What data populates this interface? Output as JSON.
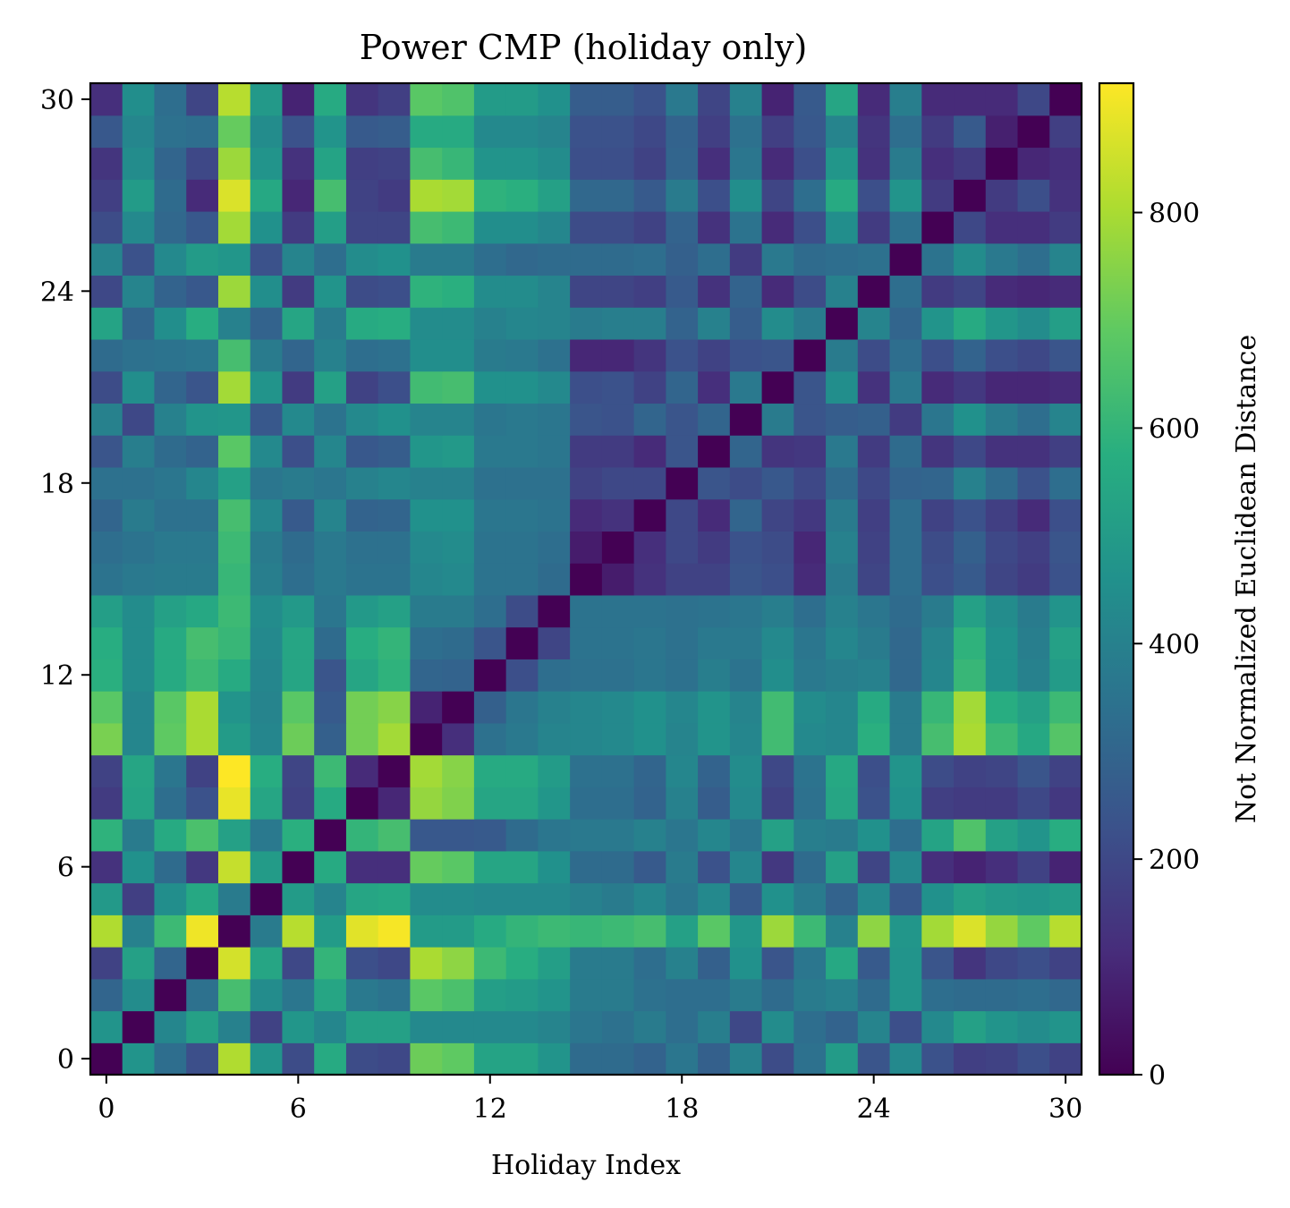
{
  "chart_data": {
    "type": "heatmap",
    "title": "Power CMP (holiday only)",
    "xlabel": "Holiday Index",
    "ylabel": "",
    "xlim": [
      -0.5,
      30.5
    ],
    "ylim": [
      -0.5,
      30.5
    ],
    "x_ticks": [
      0,
      6,
      12,
      18,
      24,
      30
    ],
    "y_ticks": [
      0,
      6,
      12,
      18,
      24,
      30
    ],
    "colormap": "viridis",
    "colorbar": {
      "label": "Not Normalized Euclidean Distance",
      "range": [
        0,
        920
      ],
      "ticks": [
        0,
        200,
        400,
        600,
        800
      ]
    },
    "size": 31,
    "values": [
      [
        0,
        470,
        330,
        220,
        810,
        470,
        210,
        560,
        210,
        200,
        710,
        690,
        530,
        530,
        470,
        320,
        320,
        290,
        360,
        280,
        400,
        210,
        340,
        500,
        240,
        430,
        230,
        170,
        180,
        220,
        180
      ],
      [
        470,
        0,
        420,
        520,
        400,
        180,
        480,
        420,
        520,
        520,
        430,
        430,
        430,
        430,
        410,
        360,
        340,
        380,
        330,
        390,
        200,
        440,
        330,
        290,
        410,
        220,
        430,
        520,
        470,
        440,
        470
      ],
      [
        300,
        440,
        0,
        340,
        640,
        440,
        360,
        540,
        370,
        350,
        680,
        650,
        510,
        500,
        470,
        380,
        380,
        340,
        330,
        330,
        380,
        320,
        380,
        400,
        320,
        470,
        330,
        320,
        320,
        330,
        310
      ],
      [
        180,
        520,
        300,
        0,
        860,
        540,
        200,
        600,
        220,
        200,
        800,
        760,
        620,
        570,
        510,
        380,
        380,
        330,
        400,
        280,
        460,
        240,
        360,
        550,
        260,
        470,
        240,
        140,
        200,
        220,
        180
      ],
      [
        810,
        400,
        620,
        900,
        0,
        380,
        820,
        500,
        880,
        910,
        500,
        500,
        560,
        600,
        620,
        610,
        620,
        640,
        520,
        680,
        480,
        780,
        620,
        400,
        760,
        480,
        790,
        870,
        770,
        690,
        820
      ],
      [
        490,
        170,
        450,
        550,
        380,
        0,
        500,
        410,
        540,
        550,
        440,
        440,
        430,
        430,
        430,
        400,
        380,
        420,
        360,
        430,
        260,
        460,
        380,
        290,
        430,
        250,
        460,
        520,
        490,
        480,
        500
      ],
      [
        130,
        460,
        320,
        150,
        840,
        500,
        0,
        560,
        120,
        120,
        700,
        680,
        540,
        540,
        460,
        320,
        320,
        260,
        380,
        230,
        420,
        150,
        320,
        520,
        190,
        430,
        120,
        90,
        120,
        180,
        90
      ],
      [
        590,
        380,
        560,
        650,
        520,
        370,
        580,
        0,
        600,
        640,
        250,
        250,
        260,
        320,
        360,
        370,
        370,
        400,
        360,
        420,
        360,
        520,
        390,
        380,
        460,
        330,
        530,
        660,
        520,
        470,
        570
      ],
      [
        160,
        530,
        330,
        230,
        890,
        540,
        180,
        560,
        0,
        100,
        770,
        740,
        540,
        540,
        480,
        330,
        330,
        290,
        400,
        270,
        430,
        180,
        340,
        540,
        230,
        460,
        170,
        160,
        160,
        200,
        150
      ],
      [
        180,
        540,
        360,
        180,
        920,
        570,
        190,
        620,
        110,
        0,
        790,
        750,
        560,
        560,
        500,
        340,
        340,
        300,
        420,
        290,
        440,
        200,
        350,
        550,
        220,
        470,
        210,
        180,
        190,
        240,
        180
      ],
      [
        730,
        420,
        690,
        800,
        500,
        420,
        710,
        280,
        720,
        790,
        0,
        120,
        340,
        370,
        410,
        420,
        430,
        460,
        410,
        470,
        420,
        630,
        430,
        420,
        580,
        380,
        640,
        800,
        620,
        550,
        670
      ],
      [
        680,
        420,
        680,
        800,
        470,
        410,
        680,
        260,
        720,
        750,
        90,
        0,
        280,
        360,
        400,
        420,
        430,
        460,
        420,
        470,
        410,
        630,
        440,
        420,
        560,
        380,
        610,
        790,
        570,
        520,
        620
      ],
      [
        580,
        440,
        560,
        620,
        560,
        420,
        540,
        240,
        540,
        590,
        300,
        290,
        0,
        220,
        330,
        340,
        340,
        360,
        340,
        390,
        350,
        450,
        370,
        390,
        400,
        310,
        420,
        610,
        460,
        400,
        500
      ],
      [
        570,
        440,
        560,
        640,
        610,
        430,
        540,
        320,
        570,
        600,
        330,
        320,
        240,
        0,
        190,
        350,
        350,
        360,
        340,
        370,
        370,
        430,
        360,
        420,
        380,
        310,
        410,
        590,
        460,
        390,
        520
      ],
      [
        510,
        440,
        520,
        550,
        620,
        440,
        490,
        360,
        490,
        520,
        380,
        380,
        330,
        210,
        0,
        350,
        350,
        350,
        340,
        350,
        360,
        390,
        330,
        400,
        360,
        320,
        380,
        520,
        440,
        380,
        470
      ],
      [
        350,
        370,
        380,
        380,
        610,
        390,
        330,
        370,
        350,
        350,
        420,
        430,
        350,
        350,
        320,
        0,
        70,
        130,
        180,
        180,
        240,
        220,
        110,
        380,
        190,
        330,
        220,
        260,
        190,
        160,
        230
      ],
      [
        330,
        350,
        370,
        370,
        620,
        380,
        320,
        370,
        340,
        340,
        430,
        440,
        350,
        350,
        330,
        70,
        0,
        120,
        200,
        160,
        230,
        210,
        100,
        400,
        180,
        330,
        210,
        280,
        200,
        170,
        240
      ],
      [
        300,
        380,
        340,
        340,
        640,
        420,
        260,
        410,
        290,
        300,
        460,
        460,
        360,
        360,
        350,
        110,
        130,
        0,
        200,
        110,
        300,
        190,
        150,
        380,
        170,
        330,
        180,
        230,
        170,
        110,
        220
      ],
      [
        340,
        340,
        360,
        420,
        520,
        360,
        380,
        360,
        400,
        420,
        400,
        400,
        340,
        340,
        340,
        180,
        200,
        200,
        0,
        240,
        210,
        250,
        200,
        320,
        200,
        290,
        300,
        400,
        320,
        230,
        330
      ],
      [
        240,
        390,
        320,
        290,
        680,
        430,
        220,
        420,
        250,
        270,
        480,
        490,
        370,
        370,
        360,
        160,
        160,
        110,
        240,
        0,
        300,
        140,
        150,
        370,
        160,
        320,
        140,
        200,
        130,
        130,
        170
      ],
      [
        400,
        200,
        400,
        470,
        480,
        250,
        430,
        350,
        430,
        460,
        410,
        410,
        360,
        370,
        360,
        240,
        230,
        300,
        240,
        300,
        0,
        380,
        240,
        270,
        280,
        160,
        360,
        460,
        380,
        330,
        410
      ],
      [
        210,
        450,
        300,
        240,
        790,
        470,
        160,
        520,
        180,
        220,
        630,
        640,
        460,
        460,
        430,
        220,
        230,
        180,
        300,
        120,
        370,
        0,
        240,
        450,
        130,
        370,
        110,
        150,
        100,
        100,
        110
      ],
      [
        320,
        340,
        350,
        360,
        640,
        380,
        300,
        400,
        330,
        340,
        450,
        450,
        380,
        370,
        340,
        100,
        100,
        140,
        230,
        180,
        230,
        240,
        0,
        380,
        210,
        330,
        220,
        290,
        220,
        200,
        240
      ],
      [
        530,
        300,
        450,
        570,
        400,
        290,
        540,
        380,
        560,
        570,
        440,
        440,
        400,
        420,
        410,
        380,
        390,
        390,
        290,
        400,
        270,
        440,
        380,
        0,
        410,
        300,
        470,
        560,
        480,
        440,
        510
      ],
      [
        200,
        410,
        290,
        250,
        780,
        450,
        160,
        470,
        210,
        220,
        590,
        580,
        440,
        440,
        410,
        190,
        190,
        170,
        260,
        130,
        290,
        110,
        210,
        400,
        0,
        330,
        160,
        190,
        110,
        100,
        110
      ],
      [
        410,
        230,
        430,
        500,
        480,
        230,
        410,
        330,
        440,
        460,
        380,
        380,
        330,
        310,
        320,
        320,
        320,
        330,
        280,
        330,
        160,
        370,
        320,
        330,
        340,
        0,
        350,
        440,
        370,
        330,
        410
      ],
      [
        210,
        430,
        310,
        250,
        790,
        460,
        160,
        510,
        190,
        190,
        640,
        620,
        450,
        450,
        420,
        210,
        210,
        180,
        290,
        130,
        350,
        110,
        220,
        450,
        160,
        340,
        0,
        200,
        120,
        120,
        160
      ],
      [
        170,
        500,
        320,
        110,
        870,
        550,
        100,
        640,
        180,
        160,
        800,
        790,
        590,
        580,
        520,
        310,
        310,
        260,
        380,
        220,
        450,
        190,
        330,
        560,
        220,
        470,
        160,
        0,
        160,
        220,
        130
      ],
      [
        140,
        440,
        300,
        200,
        780,
        470,
        130,
        530,
        170,
        180,
        640,
        610,
        470,
        470,
        440,
        220,
        220,
        180,
        300,
        120,
        360,
        110,
        220,
        480,
        130,
        380,
        120,
        160,
        0,
        100,
        120
      ],
      [
        250,
        420,
        340,
        330,
        700,
        440,
        230,
        470,
        260,
        270,
        560,
        560,
        430,
        430,
        410,
        230,
        230,
        200,
        290,
        170,
        340,
        170,
        250,
        410,
        140,
        330,
        160,
        260,
        80,
        0,
        170
      ],
      [
        120,
        450,
        330,
        190,
        820,
        490,
        90,
        560,
        140,
        170,
        680,
        660,
        500,
        500,
        460,
        270,
        270,
        230,
        370,
        190,
        400,
        90,
        260,
        540,
        110,
        390,
        110,
        110,
        110,
        200,
        0
      ]
    ]
  }
}
